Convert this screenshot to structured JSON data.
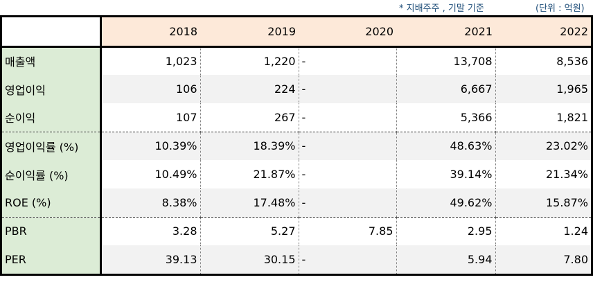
{
  "notes": {
    "basis": "* 지배주주 , 기말 기준",
    "unit": "(단위 : 억원)"
  },
  "table": {
    "years": [
      "2018",
      "2019",
      "2020",
      "2021",
      "2022"
    ],
    "rows": [
      {
        "label": "매출액",
        "values": [
          "1,023",
          "1,220",
          "-",
          "13,708",
          "8,536"
        ]
      },
      {
        "label": "영업이익",
        "values": [
          "106",
          "224",
          "-",
          "6,667",
          "1,965"
        ]
      },
      {
        "label": "순이익",
        "values": [
          "107",
          "267",
          "-",
          "5,366",
          "1,821"
        ]
      },
      {
        "label": "영업이익률 (%)",
        "values": [
          "10.39%",
          "18.39%",
          "-",
          "48.63%",
          "23.02%"
        ]
      },
      {
        "label": "순이익률 (%)",
        "values": [
          "10.49%",
          "21.87%",
          "-",
          "39.14%",
          "21.34%"
        ]
      },
      {
        "label": "ROE (%)",
        "values": [
          "8.38%",
          "17.48%",
          "-",
          "49.62%",
          "15.87%"
        ]
      },
      {
        "label": "PBR",
        "values": [
          "3.28",
          "5.27",
          "7.85",
          "2.95",
          "1.24"
        ]
      },
      {
        "label": "PER",
        "values": [
          "39.13",
          "30.15",
          "-",
          "5.94",
          "7.80"
        ]
      }
    ]
  }
}
